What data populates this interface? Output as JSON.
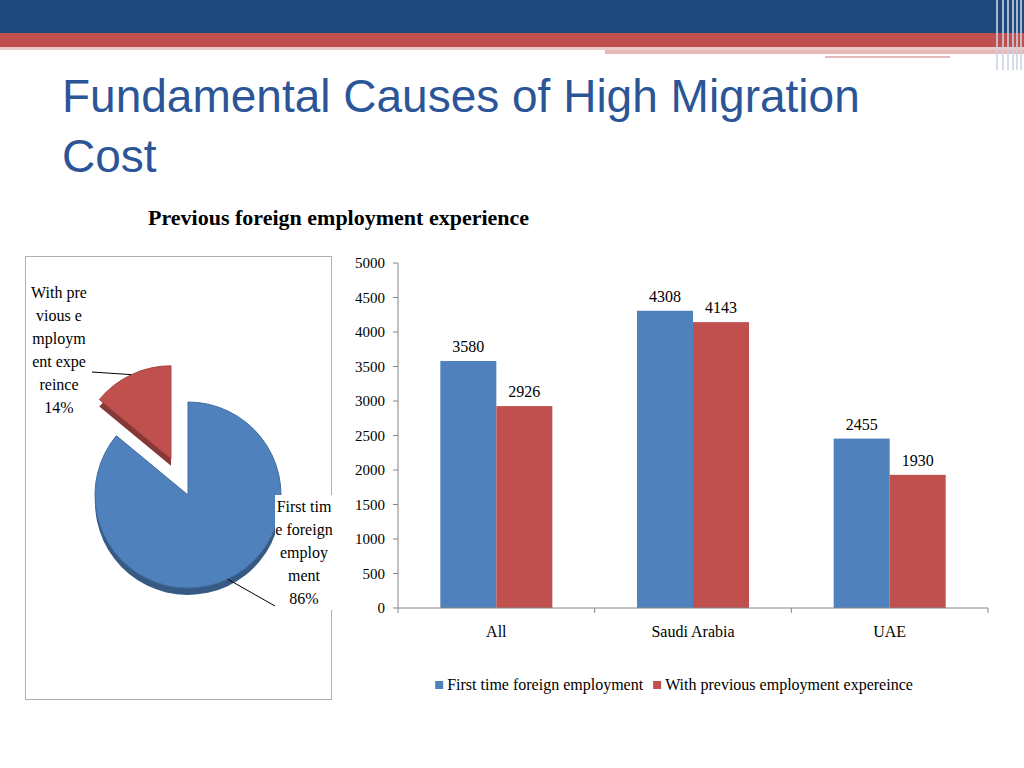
{
  "header": {
    "title": "Fundamental Causes of High Migration Cost",
    "subtitle": "Previous foreign employment experience"
  },
  "chart_data": [
    {
      "type": "pie",
      "categories": [
        "First time foreign employment",
        "With previous employment expereince"
      ],
      "values": [
        86,
        14
      ],
      "value_labels": [
        "86%",
        "14%"
      ],
      "colors": [
        "#4f81bd",
        "#c0504d"
      ],
      "data_labels": true
    },
    {
      "type": "bar",
      "categories": [
        "All",
        "Saudi Arabia",
        "UAE"
      ],
      "series": [
        {
          "name": "First time foreign employment",
          "color": "#4f81bd",
          "values": [
            3580,
            4308,
            2455
          ]
        },
        {
          "name": "With previous employment expereince",
          "color": "#c0504d",
          "values": [
            2926,
            4143,
            1930
          ]
        }
      ],
      "ylim": [
        0,
        5000
      ],
      "yticks": [
        0,
        500,
        1000,
        1500,
        2000,
        2500,
        3000,
        3500,
        4000,
        4500,
        5000
      ],
      "grid": false,
      "legend": "bottom",
      "data_labels": true
    }
  ]
}
